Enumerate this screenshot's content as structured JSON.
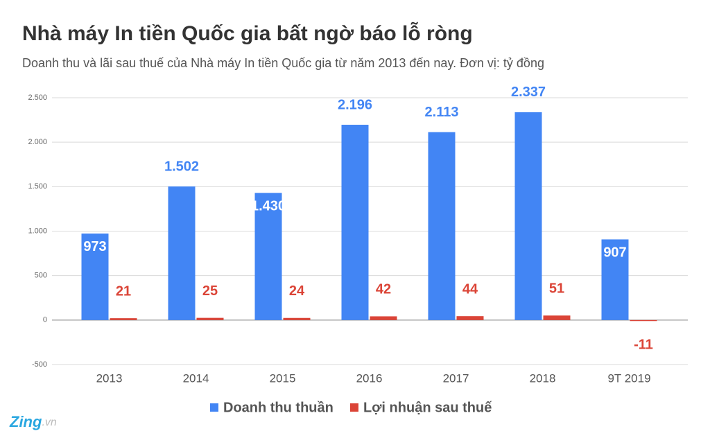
{
  "chart_data": {
    "type": "bar",
    "title": "Nhà máy In tiền Quốc gia bất ngờ báo lỗ ròng",
    "subtitle": "Doanh thu và lãi sau thuế của Nhà máy In tiền Quốc gia từ năm 2013 đến nay. Đơn vị: tỷ đồng",
    "categories": [
      "2013",
      "2014",
      "2015",
      "2016",
      "2017",
      "2018",
      "9T 2019"
    ],
    "series": [
      {
        "name": "Doanh thu thuần",
        "color": "#4285f4",
        "values": [
          973,
          1502,
          1430,
          2196,
          2113,
          2337,
          907
        ],
        "value_labels": [
          "973",
          "1.502",
          "1.430",
          "2.196",
          "2.113",
          "2.337",
          "907"
        ]
      },
      {
        "name": "Lợi nhuận sau thuế",
        "color": "#db4437",
        "values": [
          21,
          25,
          24,
          42,
          44,
          51,
          -11
        ]
      }
    ],
    "ylim": [
      -500,
      2500
    ],
    "yticks": [
      -500,
      0,
      500,
      {
        "value": 1000,
        "label": "1.000"
      },
      {
        "value": 1500,
        "label": "1.500"
      },
      {
        "value": 2000,
        "label": "2.000"
      },
      {
        "value": 2500,
        "label": "2.500"
      }
    ],
    "grid": true,
    "legend": "bottom",
    "watermark": {
      "brand": "Zing",
      "domain": ".vn"
    }
  }
}
